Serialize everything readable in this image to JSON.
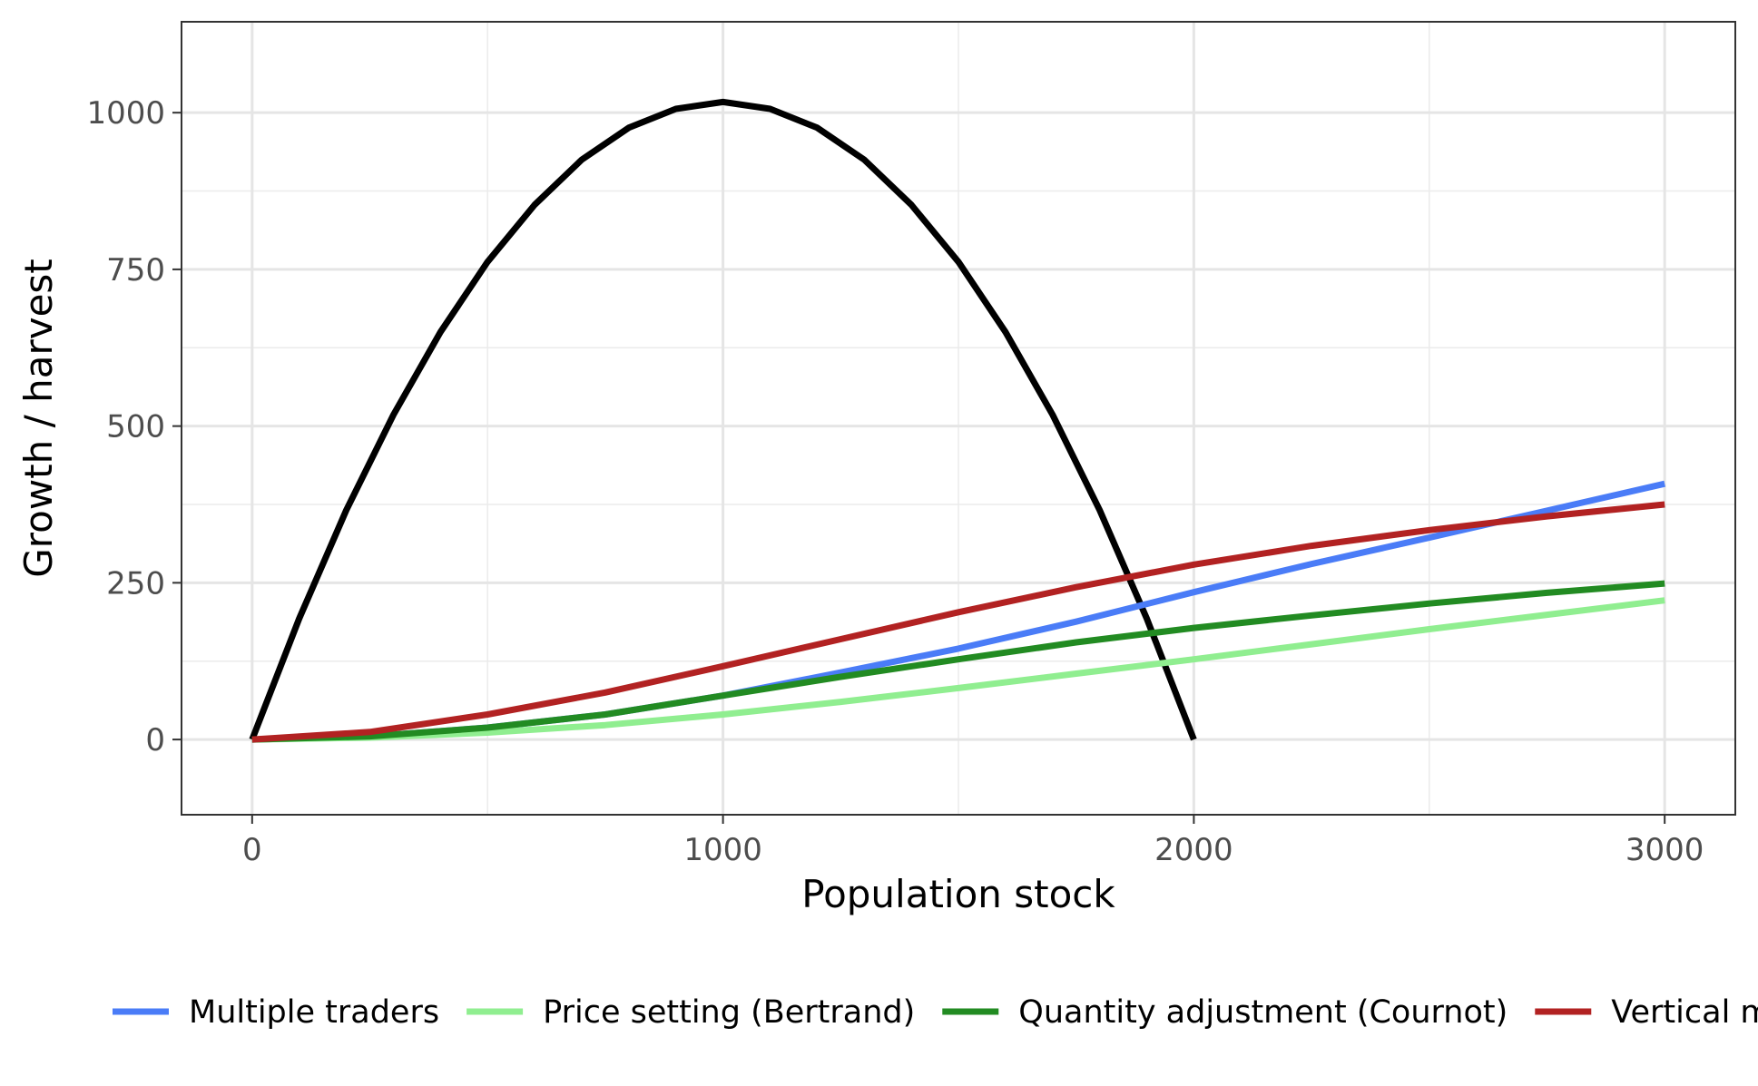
{
  "chart_data": {
    "type": "line",
    "title": "",
    "xlabel": "Population stock",
    "ylabel": "Growth / harvest",
    "xlim": [
      -150,
      3150
    ],
    "ylim": [
      -120,
      1145
    ],
    "x_ticks": [
      0,
      1000,
      2000,
      3000
    ],
    "x_tick_labels": [
      "0",
      "1000",
      "2000",
      "3000"
    ],
    "y_ticks": [
      0,
      250,
      500,
      750,
      1000
    ],
    "y_tick_labels": [
      "0",
      "250",
      "500",
      "750",
      "1000"
    ],
    "grid": true,
    "legend_position": "bottom",
    "series": [
      {
        "name": "",
        "color": "#000000",
        "x": [
          0,
          100,
          200,
          300,
          400,
          500,
          600,
          700,
          800,
          900,
          1000,
          1100,
          1200,
          1300,
          1400,
          1500,
          1600,
          1700,
          1800,
          1900,
          2000
        ],
        "y": [
          0,
          193,
          366,
          518,
          650,
          762,
          853,
          925,
          976,
          1006,
          1017,
          1006,
          976,
          925,
          853,
          762,
          650,
          518,
          366,
          193,
          0
        ]
      },
      {
        "name": "Multiple traders",
        "color": "#4a7cf7",
        "x": [
          0,
          250,
          500,
          750,
          1000,
          1250,
          1500,
          1750,
          2000,
          2250,
          2500,
          2750,
          3000
        ],
        "y": [
          0,
          5,
          19,
          40,
          70,
          107,
          145,
          188,
          235,
          280,
          322,
          365,
          408
        ]
      },
      {
        "name": "Price setting (Bertrand)",
        "color": "#90ee90",
        "x": [
          0,
          250,
          500,
          750,
          1000,
          1250,
          1500,
          1750,
          2000,
          2250,
          2500,
          2750,
          3000
        ],
        "y": [
          0,
          3,
          11,
          23,
          40,
          60,
          82,
          105,
          128,
          152,
          176,
          199,
          222
        ]
      },
      {
        "name": "Quantity adjustment (Cournot)",
        "color": "#228b22",
        "x": [
          0,
          250,
          500,
          750,
          1000,
          1250,
          1500,
          1750,
          2000,
          2250,
          2500,
          2750,
          3000
        ],
        "y": [
          0,
          5,
          19,
          40,
          70,
          100,
          128,
          155,
          178,
          198,
          217,
          234,
          249
        ]
      },
      {
        "name": "Vertical monopoly",
        "color": "#b22222",
        "x": [
          0,
          250,
          500,
          750,
          1000,
          1250,
          1500,
          1750,
          2000,
          2250,
          2500,
          2750,
          3000
        ],
        "y": [
          0,
          12,
          40,
          75,
          117,
          160,
          203,
          243,
          279,
          309,
          334,
          356,
          375
        ]
      }
    ]
  }
}
